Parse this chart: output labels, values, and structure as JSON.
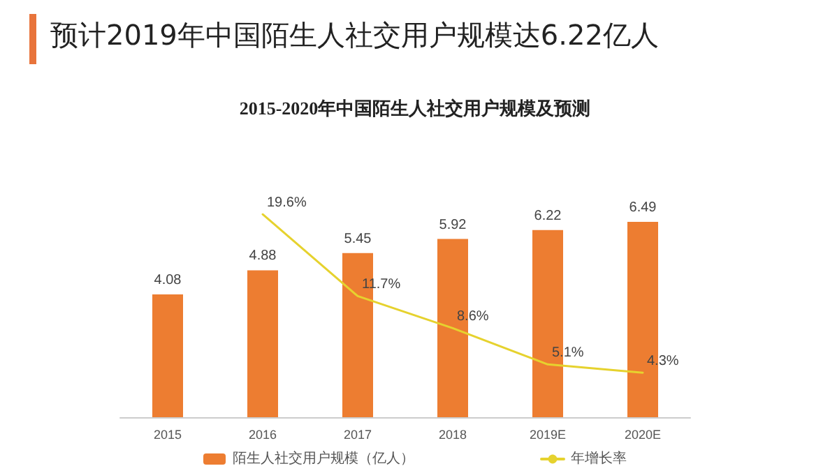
{
  "chart_data": {
    "type": "bar",
    "title": "预计2019年中国陌生人社交用户规模达6.22亿人",
    "subtitle": "2015-2020年中国陌生人社交用户规模及预测",
    "categories": [
      "2015",
      "2016",
      "2017",
      "2018",
      "2019E",
      "2020E"
    ],
    "series": [
      {
        "name": "陌生人社交用户规模（亿人）",
        "color": "#ed7d31",
        "values": [
          4.08,
          4.88,
          5.45,
          5.92,
          6.22,
          6.49
        ],
        "value_labels": [
          "4.08",
          "4.88",
          "5.45",
          "5.92",
          "6.22",
          "6.49"
        ]
      },
      {
        "name": "年增长率",
        "type": "line",
        "axis": "y2",
        "color": "#e6d22e",
        "values": [
          null,
          19.6,
          11.7,
          8.6,
          5.1,
          4.3
        ],
        "value_labels": [
          null,
          "19.6%",
          "11.7%",
          "8.6%",
          "5.1%",
          "4.3%"
        ]
      }
    ],
    "tick_labels": "x",
    "grid": false,
    "legend": "bottom",
    "marker": "none",
    "line_style": "solid"
  }
}
